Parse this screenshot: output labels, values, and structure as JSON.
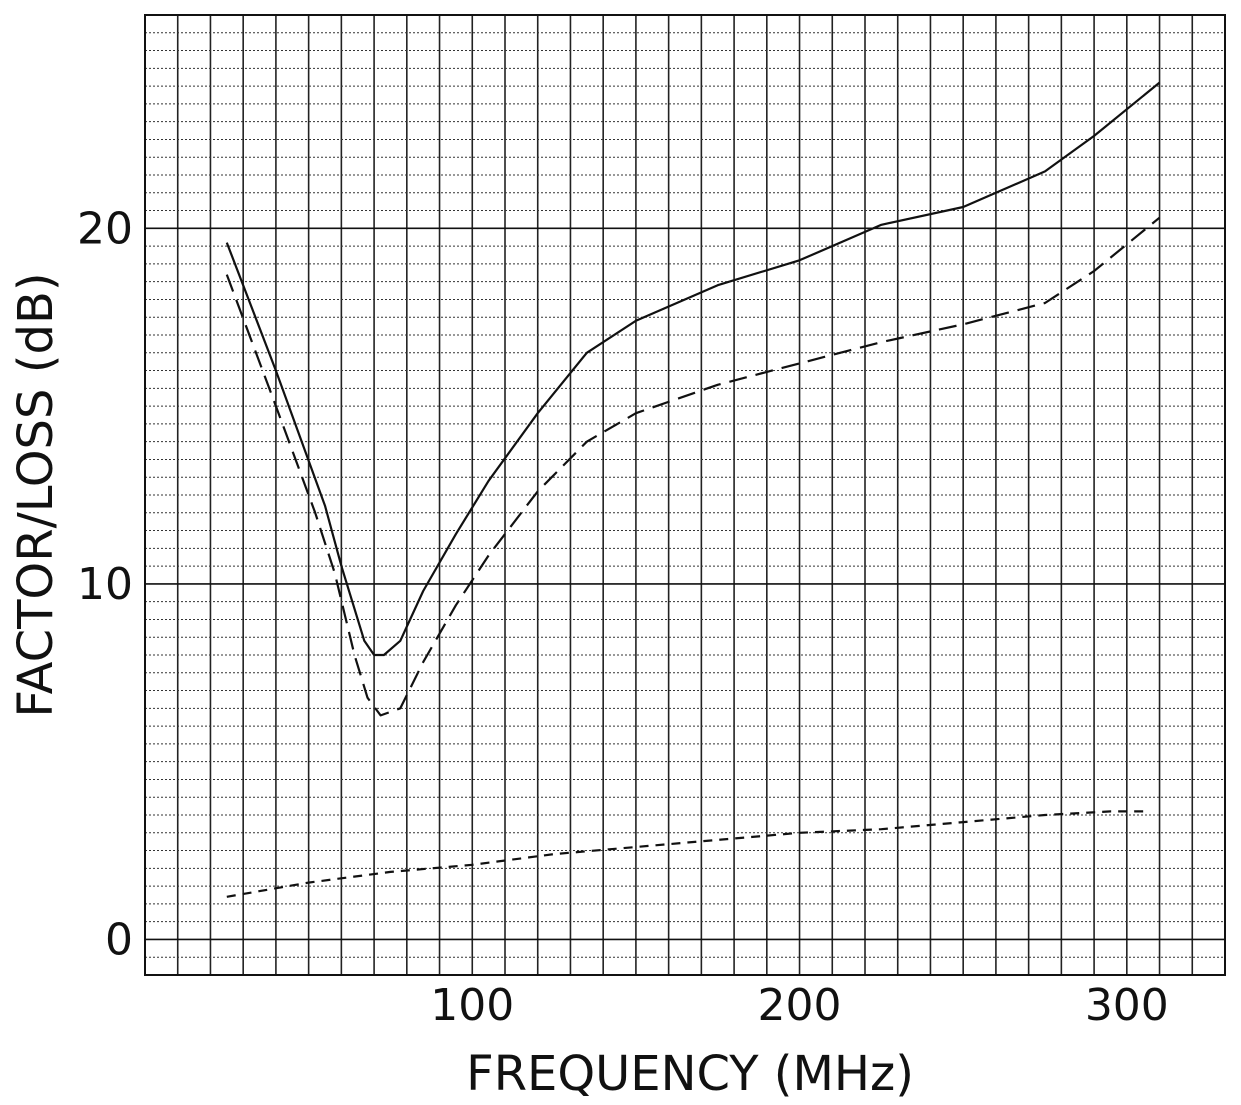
{
  "chart_data": {
    "type": "line",
    "xlabel": "FREQUENCY (MHz)",
    "ylabel": "FACTOR/LOSS (dB)",
    "xlim": [
      0,
      330
    ],
    "ylim": [
      -1,
      26
    ],
    "x_ticks": [
      {
        "value": 100,
        "label": "100"
      },
      {
        "value": 200,
        "label": "200"
      },
      {
        "value": 300,
        "label": "300"
      }
    ],
    "y_ticks": [
      {
        "value": 0,
        "label": "0"
      },
      {
        "value": 10,
        "label": "10"
      },
      {
        "value": 20,
        "label": "20"
      }
    ],
    "grid": true,
    "series": [
      {
        "style": "solid",
        "x": [
          25,
          40,
          55,
          60,
          67,
          70,
          73,
          78,
          85,
          95,
          105,
          120,
          135,
          150,
          175,
          200,
          225,
          250,
          275,
          290,
          310
        ],
        "y": [
          19.6,
          16.0,
          12.2,
          10.5,
          8.4,
          8.0,
          8.0,
          8.4,
          9.8,
          11.4,
          12.9,
          14.8,
          16.5,
          17.4,
          18.4,
          19.1,
          20.1,
          20.6,
          21.6,
          22.6,
          24.1
        ]
      },
      {
        "style": "dashed",
        "x": [
          25,
          40,
          52,
          58,
          64,
          68,
          72,
          78,
          85,
          95,
          105,
          120,
          135,
          150,
          175,
          200,
          225,
          250,
          275,
          290,
          310
        ],
        "y": [
          18.7,
          15.0,
          12.0,
          10.3,
          8.0,
          6.8,
          6.3,
          6.5,
          7.8,
          9.4,
          10.8,
          12.6,
          14.0,
          14.8,
          15.6,
          16.2,
          16.8,
          17.3,
          17.9,
          18.8,
          20.3
        ]
      },
      {
        "style": "short-dashed",
        "x": [
          25,
          50,
          75,
          100,
          125,
          150,
          175,
          200,
          225,
          250,
          275,
          295,
          305
        ],
        "y": [
          1.2,
          1.6,
          1.9,
          2.1,
          2.4,
          2.6,
          2.8,
          3.0,
          3.1,
          3.3,
          3.5,
          3.6,
          3.6
        ]
      }
    ]
  }
}
